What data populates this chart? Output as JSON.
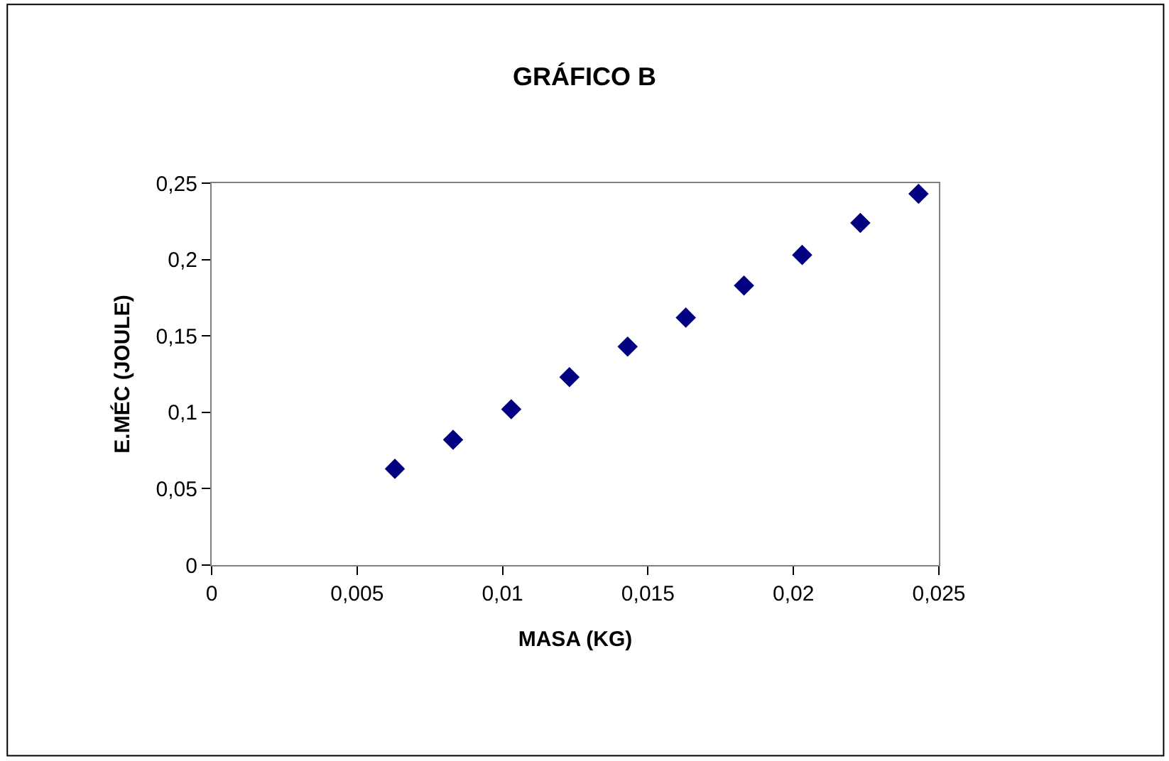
{
  "chart_data": {
    "type": "scatter",
    "title": "GRÁFICO B",
    "xlabel": "MASA (KG)",
    "ylabel": "E.MÉC (JOULE)",
    "x": [
      0.0063,
      0.0083,
      0.0103,
      0.0123,
      0.0143,
      0.0163,
      0.0183,
      0.0203,
      0.0223,
      0.0243
    ],
    "series": [
      {
        "color": "#000080",
        "values": [
          0.063,
          0.082,
          0.102,
          0.123,
          0.143,
          0.162,
          0.183,
          0.203,
          0.224,
          0.243
        ]
      }
    ],
    "xlim": [
      0,
      0.025
    ],
    "xticks": [
      0,
      {
        "value": 0.005,
        "label": "0,005"
      },
      {
        "value": 0.01,
        "label": "0,01"
      },
      {
        "value": 0.015,
        "label": "0,015"
      },
      {
        "value": 0.02,
        "label": "0,02"
      },
      {
        "value": 0.025,
        "label": "0,025"
      }
    ],
    "ylim": [
      0,
      0.25
    ],
    "yticks": [
      0,
      {
        "value": 0.05,
        "label": "0,05"
      },
      {
        "value": 0.1,
        "label": "0,1"
      },
      {
        "value": 0.15,
        "label": "0,15"
      },
      {
        "value": 0.2,
        "label": "0,2"
      },
      {
        "value": 0.25,
        "label": "0,25"
      }
    ],
    "marker": "diamond"
  }
}
